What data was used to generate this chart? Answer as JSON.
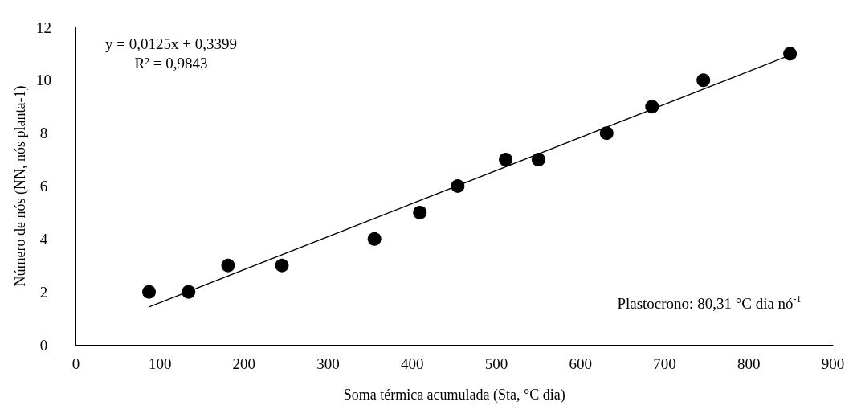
{
  "chart_data": {
    "type": "scatter",
    "xlabel": "Soma térmica acumulada (Sta, °C dia)",
    "ylabel": "Número de nós (NN, nós planta-1)",
    "xlim": [
      0,
      900
    ],
    "xticks": [
      0,
      100,
      200,
      300,
      400,
      500,
      600,
      700,
      800,
      900
    ],
    "ylim": [
      0,
      12
    ],
    "yticks": [
      0,
      2,
      4,
      6,
      8,
      10,
      12
    ],
    "grid": false,
    "marker": "circle",
    "series": [
      {
        "color": "#000000",
        "x": [
          87,
          134,
          181,
          245,
          355,
          409,
          454,
          511,
          550,
          631,
          685,
          746,
          849
        ],
        "values": [
          2,
          2,
          3,
          3,
          4,
          5,
          6,
          7,
          7,
          8,
          9,
          10,
          11
        ]
      },
      {
        "type": "line",
        "color": "#000000",
        "marker": "none",
        "line_style": "solid",
        "x": [
          87,
          849
        ],
        "values": [
          1.43,
          10.95
        ]
      }
    ],
    "annotations": [
      "y = 0,0125x + 0,3399",
      "R² = 0,9843",
      "Plastocrono: 80,31 °C dia nó$^{-1}$"
    ]
  }
}
